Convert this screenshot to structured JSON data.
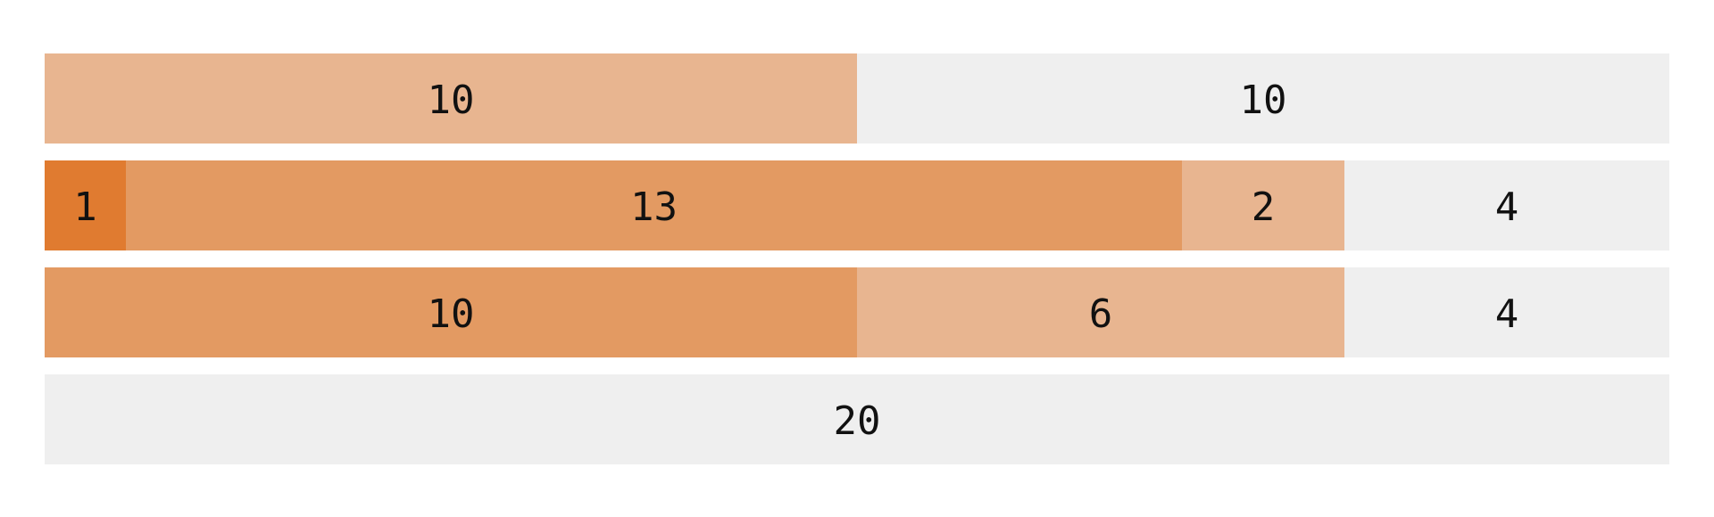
{
  "chart_data": {
    "type": "bar",
    "orientation": "horizontal",
    "stacked": true,
    "total_per_row": 20,
    "title": "",
    "xlabel": "",
    "ylabel": "",
    "legend": "none",
    "grid": false,
    "rows": [
      {
        "segments": [
          {
            "value": 10,
            "label": "10",
            "color": "#e8b590"
          },
          {
            "value": 10,
            "label": "10",
            "color": "#efefef"
          }
        ]
      },
      {
        "segments": [
          {
            "value": 1,
            "label": "1",
            "color": "#e07b30"
          },
          {
            "value": 13,
            "label": "13",
            "color": "#e39a62"
          },
          {
            "value": 2,
            "label": "2",
            "color": "#e8b590"
          },
          {
            "value": 4,
            "label": "4",
            "color": "#efefef"
          }
        ]
      },
      {
        "segments": [
          {
            "value": 10,
            "label": "10",
            "color": "#e39a62"
          },
          {
            "value": 6,
            "label": "6",
            "color": "#e8b590"
          },
          {
            "value": 4,
            "label": "4",
            "color": "#efefef"
          }
        ]
      },
      {
        "segments": [
          {
            "value": 20,
            "label": "20",
            "color": "#efefef"
          }
        ]
      }
    ]
  }
}
